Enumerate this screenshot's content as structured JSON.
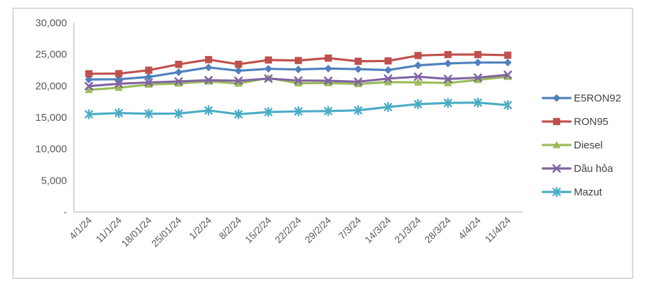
{
  "figure": {
    "background_color": "#FFFFFF",
    "border_color": "#D9D9D9"
  },
  "axis": {
    "label_color": "#595959",
    "line_color": "#C6C6C6"
  },
  "legend": {
    "position": "right",
    "text_color": "#404040"
  },
  "chart_data": {
    "type": "line",
    "title": "",
    "xlabel": "",
    "ylabel": "",
    "grid": false,
    "ylim": [
      0,
      30000
    ],
    "ytick_step": 5000,
    "ytick_labels": [
      "30,000",
      "25,000",
      "20,000",
      "15,000",
      "10,000",
      "5,000",
      "-"
    ],
    "categories": [
      "4/1/24",
      "11/1/24",
      "18/01/24",
      "25/01/24",
      "1/2/24",
      "8/2/24",
      "15/2/24",
      "22/2/24",
      "29/2/24",
      "7/3/24",
      "14/3/24",
      "21/3/24",
      "28/3/24",
      "4/4/24",
      "11/4/24"
    ],
    "series": [
      {
        "name": "E5RON92",
        "color": "#4F81BD",
        "marker": "diamond",
        "values": [
          21006,
          21041,
          21416,
          22171,
          22915,
          22400,
          22700,
          22600,
          22750,
          22650,
          22500,
          23250,
          23550,
          23700,
          23700
        ]
      },
      {
        "name": "RON95",
        "color": "#C0504D",
        "marker": "square",
        "values": [
          21916,
          21935,
          22482,
          23407,
          24160,
          23420,
          24100,
          24020,
          24400,
          23900,
          23950,
          24810,
          24960,
          24960,
          24860
        ]
      },
      {
        "name": "Diesel",
        "color": "#9BBB59",
        "marker": "triangle",
        "values": [
          19368,
          19707,
          20194,
          20376,
          20707,
          20360,
          21250,
          20420,
          20450,
          20300,
          20600,
          20550,
          20450,
          20950,
          21450
        ]
      },
      {
        "name": "Dầu hỏa",
        "color": "#8064A2",
        "marker": "x",
        "values": [
          19957,
          20331,
          20536,
          20700,
          20900,
          20800,
          21150,
          20850,
          20800,
          20650,
          21150,
          21450,
          21100,
          21300,
          21750
        ]
      },
      {
        "name": "Mazut",
        "color": "#4BACC6",
        "marker": "asterisk",
        "values": [
          15495,
          15688,
          15576,
          15600,
          16100,
          15500,
          15850,
          15950,
          16000,
          16120,
          16640,
          17100,
          17290,
          17340,
          16950
        ]
      }
    ]
  }
}
